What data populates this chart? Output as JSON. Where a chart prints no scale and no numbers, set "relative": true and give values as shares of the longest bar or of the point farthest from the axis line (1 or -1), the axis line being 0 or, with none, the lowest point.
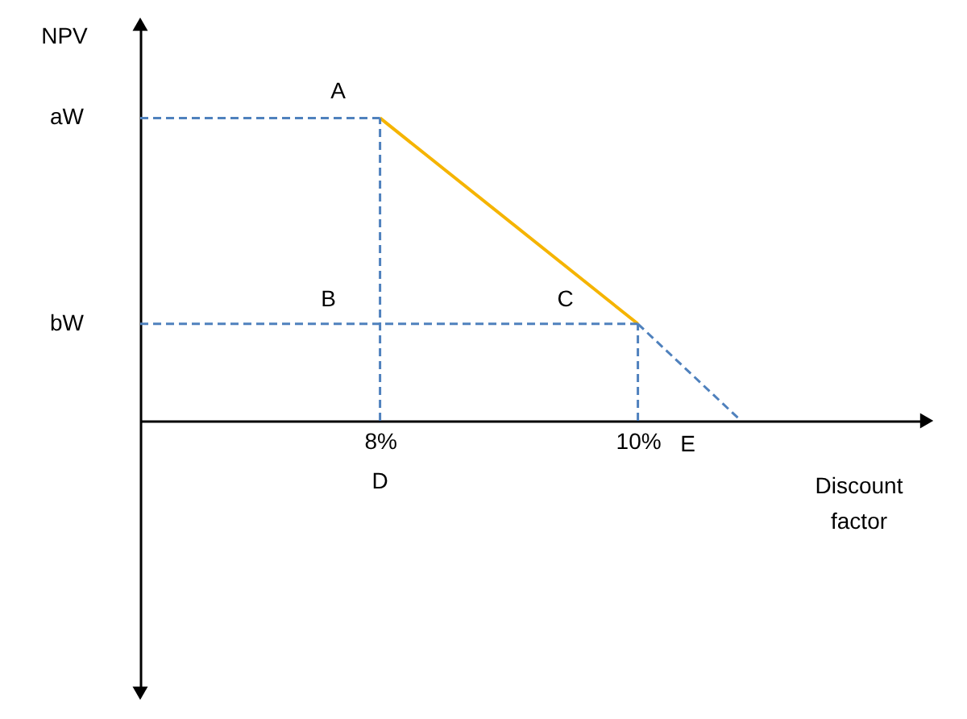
{
  "chart_data": {
    "type": "line",
    "relative": true,
    "xlabel": "Discount factor",
    "ylabel": "NPV",
    "xlim": [
      6.14,
      12.24
    ],
    "xticks": [
      {
        "value": 8,
        "label": "8%"
      },
      {
        "value": 10,
        "label": "10%"
      }
    ],
    "tick_labels": "x",
    "grid": false,
    "series": [
      {
        "color": "#f5b400",
        "line_style": "solid",
        "x": [
          8,
          10
        ],
        "values": [
          1,
          0.32
        ]
      },
      {
        "color": "#4f81bd",
        "line_style": "dashed",
        "x": [
          10,
          10.8
        ],
        "values": [
          0.32,
          0
        ]
      },
      {
        "color": "#4f81bd",
        "line_style": "dashed",
        "x": [
          6.14,
          8
        ],
        "values": [
          1,
          1
        ]
      },
      {
        "color": "#4f81bd",
        "line_style": "dashed",
        "x": [
          8,
          8
        ],
        "values": [
          0,
          1
        ]
      },
      {
        "color": "#4f81bd",
        "line_style": "dashed",
        "x": [
          6.14,
          10
        ],
        "values": [
          0.32,
          0.32
        ]
      },
      {
        "color": "#4f81bd",
        "line_style": "dashed",
        "x": [
          10,
          10
        ],
        "values": [
          0,
          0.32
        ]
      }
    ],
    "annotations": [
      "aW",
      "bW",
      {
        "text": "A",
        "x": 8,
        "y": 1
      },
      {
        "text": "B",
        "x": 8,
        "y": 0.32
      },
      {
        "text": "C",
        "x": 10,
        "y": 0.32
      },
      {
        "text": "D",
        "x": 8,
        "y": 0
      },
      {
        "text": "E",
        "x": 10.8,
        "y": 0
      }
    ]
  }
}
